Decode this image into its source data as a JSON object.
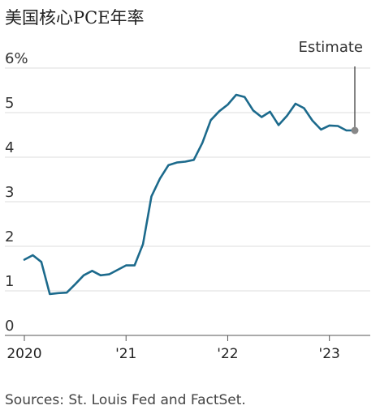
{
  "title": "美国核心PCE年率",
  "source": "Sources: St. Louis Fed and FactSet.",
  "chart_data": {
    "type": "line",
    "title": "美国核心PCE年率",
    "y_unit": "%",
    "ylim": [
      0,
      6
    ],
    "y_ticks": [
      {
        "value": 0,
        "label": "0"
      },
      {
        "value": 1,
        "label": "1"
      },
      {
        "value": 2,
        "label": "2"
      },
      {
        "value": 3,
        "label": "3"
      },
      {
        "value": 4,
        "label": "4"
      },
      {
        "value": 5,
        "label": "5"
      },
      {
        "value": 6,
        "label": "6%"
      }
    ],
    "x_ticks": [
      {
        "value": "2020-01",
        "label": "2020"
      },
      {
        "value": "2021-01",
        "label": "'21"
      },
      {
        "value": "2022-01",
        "label": "'22"
      },
      {
        "value": "2023-01",
        "label": "'23"
      }
    ],
    "xlim": [
      "2020-01",
      "2023-04"
    ],
    "grid": true,
    "series": [
      {
        "color": "#1c6a8c",
        "points": [
          {
            "x": "2020-01",
            "y": 1.7
          },
          {
            "x": "2020-02",
            "y": 1.8
          },
          {
            "x": "2020-03",
            "y": 1.65
          },
          {
            "x": "2020-04",
            "y": 0.93
          },
          {
            "x": "2020-05",
            "y": 0.95
          },
          {
            "x": "2020-06",
            "y": 0.96
          },
          {
            "x": "2020-07",
            "y": 1.15
          },
          {
            "x": "2020-08",
            "y": 1.35
          },
          {
            "x": "2020-09",
            "y": 1.45
          },
          {
            "x": "2020-10",
            "y": 1.35
          },
          {
            "x": "2020-11",
            "y": 1.37
          },
          {
            "x": "2020-12",
            "y": 1.47
          },
          {
            "x": "2021-01",
            "y": 1.57
          },
          {
            "x": "2021-02",
            "y": 1.57
          },
          {
            "x": "2021-03",
            "y": 2.05
          },
          {
            "x": "2021-04",
            "y": 3.12
          },
          {
            "x": "2021-05",
            "y": 3.52
          },
          {
            "x": "2021-06",
            "y": 3.82
          },
          {
            "x": "2021-07",
            "y": 3.88
          },
          {
            "x": "2021-08",
            "y": 3.9
          },
          {
            "x": "2021-09",
            "y": 3.94
          },
          {
            "x": "2021-10",
            "y": 4.32
          },
          {
            "x": "2021-11",
            "y": 4.83
          },
          {
            "x": "2021-12",
            "y": 5.03
          },
          {
            "x": "2022-01",
            "y": 5.18
          },
          {
            "x": "2022-02",
            "y": 5.4
          },
          {
            "x": "2022-03",
            "y": 5.35
          },
          {
            "x": "2022-04",
            "y": 5.05
          },
          {
            "x": "2022-05",
            "y": 4.9
          },
          {
            "x": "2022-06",
            "y": 5.02
          },
          {
            "x": "2022-07",
            "y": 4.72
          },
          {
            "x": "2022-08",
            "y": 4.93
          },
          {
            "x": "2022-09",
            "y": 5.2
          },
          {
            "x": "2022-10",
            "y": 5.1
          },
          {
            "x": "2022-11",
            "y": 4.82
          },
          {
            "x": "2022-12",
            "y": 4.62
          },
          {
            "x": "2023-01",
            "y": 4.71
          },
          {
            "x": "2023-02",
            "y": 4.7
          },
          {
            "x": "2023-03",
            "y": 4.6
          },
          {
            "x": "2023-04",
            "y": 4.6
          }
        ]
      }
    ],
    "annotations": [
      {
        "text": "Estimate",
        "x": "2023-04",
        "y": 4.6
      }
    ]
  }
}
